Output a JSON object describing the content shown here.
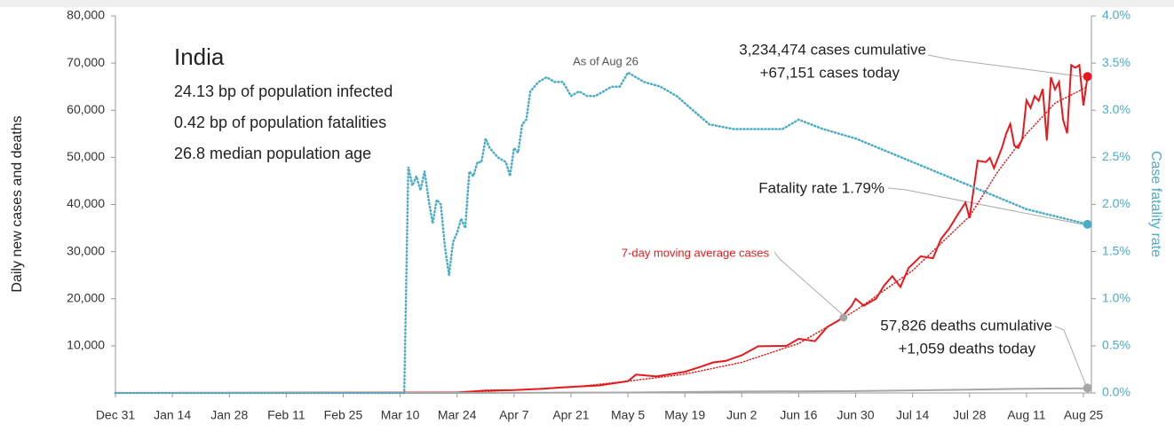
{
  "chart_data": {
    "type": "line",
    "title": "India",
    "subtitle": [
      "24.13 bp of population infected",
      "0.42 bp of population fatalities",
      "26.8 median population age"
    ],
    "ylabel": "Daily new cases and deaths",
    "y2label": "Case fatality rate",
    "annotations": {
      "as_of": "As of Aug 26",
      "cases_cum": "3,234,474 cases cumulative",
      "cases_today": "+67,151 cases today",
      "fatality": "Fatality rate 1.79%",
      "avg": "7-day moving average cases",
      "deaths_cum": "57,826 deaths cumulative",
      "deaths_today": "+1,059 deaths today"
    },
    "xlim": [
      0,
      240
    ],
    "xticks": [
      {
        "value": 0,
        "label": "Dec 31"
      },
      {
        "value": 14,
        "label": "Jan 14"
      },
      {
        "value": 28,
        "label": "Jan 28"
      },
      {
        "value": 42,
        "label": "Feb 11"
      },
      {
        "value": 56,
        "label": "Feb 25"
      },
      {
        "value": 70,
        "label": "Mar 10"
      },
      {
        "value": 84,
        "label": "Mar 24"
      },
      {
        "value": 98,
        "label": "Apr 7"
      },
      {
        "value": 112,
        "label": "Apr 21"
      },
      {
        "value": 126,
        "label": "May 5"
      },
      {
        "value": 140,
        "label": "May 19"
      },
      {
        "value": 154,
        "label": "Jun 2"
      },
      {
        "value": 168,
        "label": "Jun 16"
      },
      {
        "value": 182,
        "label": "Jun 30"
      },
      {
        "value": 196,
        "label": "Jul 14"
      },
      {
        "value": 210,
        "label": "Jul 28"
      },
      {
        "value": 224,
        "label": "Aug 11"
      },
      {
        "value": 238,
        "label": "Aug 25"
      }
    ],
    "ylim": [
      0,
      80000
    ],
    "yticks": [
      {
        "value": 10000,
        "label": "10,000"
      },
      {
        "value": 20000,
        "label": "20,000"
      },
      {
        "value": 30000,
        "label": "30,000"
      },
      {
        "value": 40000,
        "label": "40,000"
      },
      {
        "value": 50000,
        "label": "50,000"
      },
      {
        "value": 60000,
        "label": "60,000"
      },
      {
        "value": 70000,
        "label": "70,000"
      },
      {
        "value": 80000,
        "label": "80,000"
      }
    ],
    "y2lim": [
      0,
      4
    ],
    "y2ticks": [
      {
        "value": 0,
        "label": "0.0%"
      },
      {
        "value": 0.5,
        "label": "0.5%"
      },
      {
        "value": 1,
        "label": "1.0%"
      },
      {
        "value": 1.5,
        "label": "1.5%"
      },
      {
        "value": 2,
        "label": "2.0%"
      },
      {
        "value": 2.5,
        "label": "2.5%"
      },
      {
        "value": 3,
        "label": "3.0%"
      },
      {
        "value": 3.5,
        "label": "3.5%"
      },
      {
        "value": 4,
        "label": "4.0%"
      }
    ],
    "series": [
      {
        "color": "#e8191c",
        "style": "solid",
        "x": [
          0,
          84,
          91,
          98,
          105,
          112,
          119,
          126,
          128,
          133,
          140,
          144,
          147,
          150,
          154,
          158,
          165,
          168,
          172,
          175,
          178,
          181,
          182,
          184,
          187,
          189,
          191,
          193,
          195,
          198,
          201,
          203,
          205,
          207,
          209,
          210,
          212,
          214,
          215,
          216,
          218,
          219,
          220,
          221,
          222,
          223,
          224,
          225,
          226,
          227,
          228,
          229,
          230,
          231,
          232,
          233,
          234,
          235,
          236,
          237,
          238,
          239
        ],
        "values": [
          0,
          100,
          500,
          600,
          900,
          1300,
          1600,
          2500,
          3900,
          3500,
          4500,
          5600,
          6500,
          6800,
          8000,
          9900,
          10000,
          11500,
          11000,
          14000,
          15500,
          18500,
          20000,
          18500,
          20000,
          22800,
          24800,
          22500,
          26500,
          29000,
          28600,
          32700,
          34900,
          37700,
          40400,
          37100,
          49300,
          49000,
          49900,
          47700,
          52100,
          55000,
          57100,
          52500,
          52000,
          54000,
          62100,
          60500,
          63000,
          62000,
          64500,
          53600,
          67000,
          64400,
          66000,
          58000,
          55100,
          69600,
          69000,
          69600,
          61000,
          67151
        ]
      },
      {
        "color": "#e8191c",
        "style": "dotted",
        "x": [
          84,
          112,
          126,
          140,
          154,
          168,
          179,
          182,
          196,
          210,
          217,
          224,
          231,
          239
        ],
        "values": [
          0,
          1200,
          2500,
          4000,
          6500,
          10500,
          16000,
          17500,
          26000,
          37500,
          47000,
          55000,
          61500,
          65000
        ]
      },
      {
        "color": "#a6a6a6",
        "style": "solid",
        "x": [
          0,
          84,
          126,
          154,
          182,
          210,
          224,
          238,
          239
        ],
        "values": [
          0,
          0,
          100,
          300,
          400,
          700,
          900,
          1000,
          1059
        ]
      },
      {
        "color": "#4bacc6",
        "style": "dotted",
        "axis": "y2",
        "x": [
          0,
          71,
          72,
          73,
          74,
          75,
          76,
          77,
          78,
          79,
          80,
          81,
          82,
          83,
          84,
          85,
          86,
          87,
          88,
          89,
          90,
          91,
          92,
          94,
          96,
          97,
          98,
          99,
          100,
          101,
          102,
          104,
          106,
          108,
          110,
          112,
          114,
          116,
          118,
          120,
          122,
          124,
          126,
          128,
          130,
          134,
          138,
          142,
          146,
          152,
          160,
          164,
          168,
          174,
          182,
          196,
          210,
          224,
          239
        ],
        "values": [
          0,
          0,
          2.4,
          2.2,
          2.3,
          2.15,
          2.35,
          2.05,
          1.8,
          2.05,
          2.0,
          1.55,
          1.25,
          1.6,
          1.7,
          1.85,
          1.75,
          2.35,
          2.3,
          2.45,
          2.45,
          2.7,
          2.6,
          2.5,
          2.45,
          2.3,
          2.6,
          2.55,
          2.85,
          2.9,
          3.2,
          3.3,
          3.35,
          3.3,
          3.3,
          3.15,
          3.2,
          3.15,
          3.15,
          3.2,
          3.25,
          3.25,
          3.4,
          3.35,
          3.3,
          3.25,
          3.15,
          3.0,
          2.85,
          2.8,
          2.8,
          2.8,
          2.9,
          2.8,
          2.7,
          2.45,
          2.2,
          1.95,
          1.79
        ]
      }
    ]
  }
}
